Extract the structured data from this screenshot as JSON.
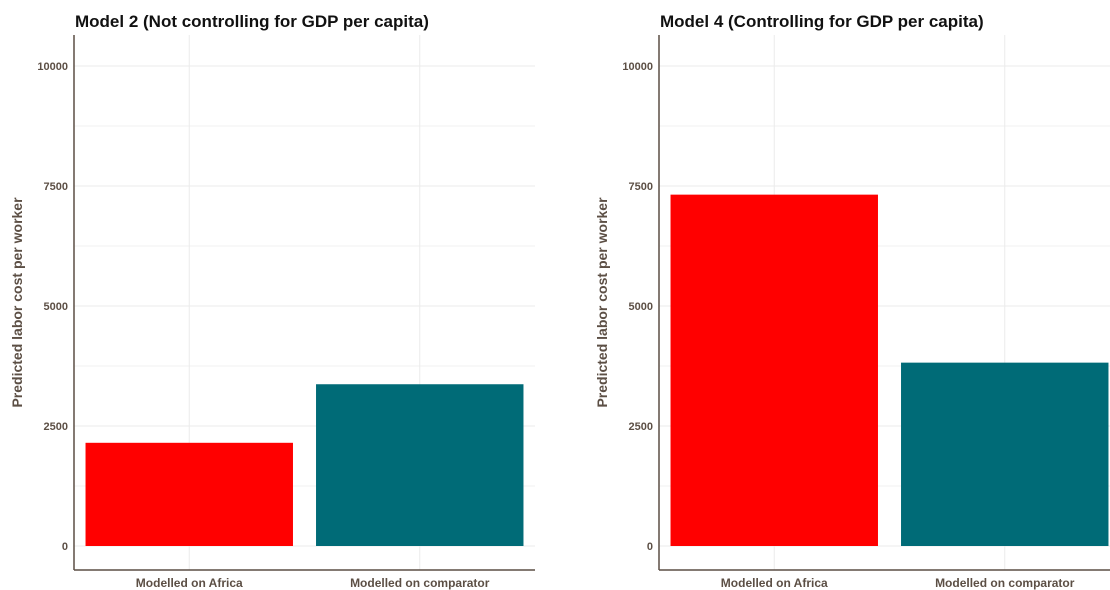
{
  "chart_data": [
    {
      "type": "bar",
      "title": "Model 2 (Not controlling for GDP per capita)",
      "xlabel": "",
      "ylabel": "Predicted labor cost per worker",
      "categories": [
        "Modelled on Africa",
        "Modelled on comparator"
      ],
      "values": [
        2150,
        3370
      ],
      "colors": [
        "#ff0000",
        "#006b77"
      ],
      "ylim": [
        0,
        10000
      ],
      "yticks": [
        0,
        2500,
        5000,
        7500,
        10000
      ],
      "ytick_labels": [
        "0",
        "2500",
        "5000",
        "7500",
        "10000"
      ],
      "grid": true
    },
    {
      "type": "bar",
      "title": "Model 4 (Controlling for GDP per capita)",
      "xlabel": "",
      "ylabel": "Predicted labor cost per worker",
      "categories": [
        "Modelled on Africa",
        "Modelled on comparator"
      ],
      "values": [
        7320,
        3820
      ],
      "colors": [
        "#ff0000",
        "#006b77"
      ],
      "ylim": [
        0,
        10000
      ],
      "yticks": [
        0,
        2500,
        5000,
        7500,
        10000
      ],
      "ytick_labels": [
        "0",
        "2500",
        "5000",
        "7500",
        "10000"
      ],
      "grid": true
    }
  ]
}
